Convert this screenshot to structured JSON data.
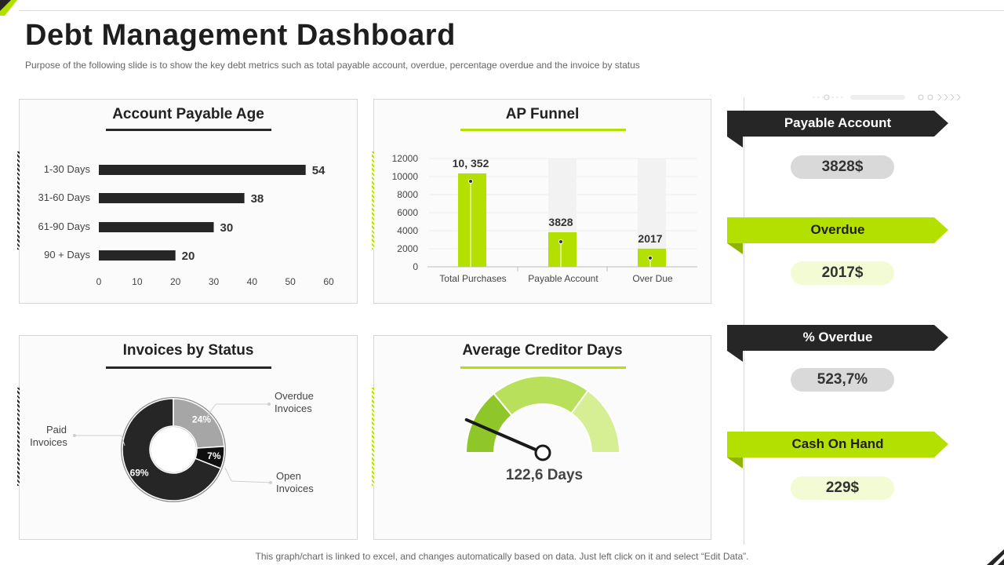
{
  "header": {
    "title": "Debt Management Dashboard",
    "subtitle": "Purpose of the following slide is to show the key debt metrics such as total payable account, overdue, percentage overdue and the invoice by status"
  },
  "colors": {
    "green": "#b4e000",
    "dark": "#262626",
    "grey": "#a6a6a6",
    "pale_green": "#f2fbd4",
    "pill_grey": "#d9d9d9"
  },
  "panels": {
    "ap_age": {
      "title": "Account Payable Age"
    },
    "ap_funnel": {
      "title": "AP Funnel"
    },
    "invoices": {
      "title": "Invoices by Status"
    },
    "creditor": {
      "title": "Average Creditor Days",
      "value_label": "122,6 Days"
    }
  },
  "chart_data": [
    {
      "type": "bar",
      "orientation": "horizontal",
      "title": "Account Payable Age",
      "categories": [
        "1-30 Days",
        "31-60 Days",
        "61-90 Days",
        "90 + Days"
      ],
      "values": [
        54,
        38,
        30,
        20
      ],
      "xlim": [
        0,
        60
      ],
      "ticks": [
        "0",
        "10",
        "20",
        "30",
        "40",
        "50",
        "60"
      ]
    },
    {
      "type": "bar",
      "title": "AP Funnel",
      "categories": [
        "Total Purchases",
        "Payable Account",
        "Over Due"
      ],
      "values": [
        10352,
        3828,
        2017
      ],
      "data_labels": [
        "10, 352",
        "3828",
        "2017"
      ],
      "ylim": [
        0,
        12000
      ],
      "ticks": [
        "0",
        "2000",
        "4000",
        "6000",
        "8000",
        "10000",
        "12000"
      ]
    },
    {
      "type": "pie",
      "title": "Invoices by Status",
      "slices": [
        {
          "name": "Paid Invoices",
          "value": 69,
          "label": "69%"
        },
        {
          "name": "Overdue Invoices",
          "value": 24,
          "label": "24%"
        },
        {
          "name": "Open Invoices",
          "value": 7,
          "label": "7%"
        }
      ],
      "legend": {
        "paid": [
          "Paid",
          "Invoices"
        ],
        "overdue": [
          "Overdue",
          "Invoices"
        ],
        "open": [
          "Open",
          "Invoices"
        ]
      }
    },
    {
      "type": "gauge",
      "title": "Average Creditor Days",
      "value_label": "122,6 Days",
      "needle_fraction": 0.13
    }
  ],
  "kpis": [
    {
      "label": "Payable Account",
      "value": "3828$"
    },
    {
      "label": "Overdue",
      "value": "2017$"
    },
    {
      "label": "% Overdue",
      "value": "523,7%"
    },
    {
      "label": "Cash On Hand",
      "value": "229$"
    }
  ],
  "footer": {
    "note": "This graph/chart is linked to excel,  and changes automatically based on data. Just left click on it and select “Edit Data”."
  }
}
